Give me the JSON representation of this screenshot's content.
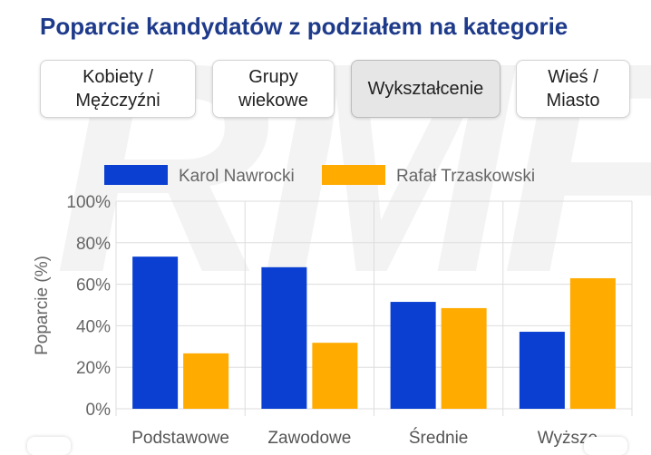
{
  "title": "Poparcie kandydatów z podziałem na kategorie",
  "watermark_text": "RMF",
  "tabs": [
    {
      "label": "Kobiety /\nMężczyźni",
      "active": false
    },
    {
      "label": "Grupy\nwiekowe",
      "active": false
    },
    {
      "label": "Wykształcenie",
      "active": true
    },
    {
      "label": "Wieś /\nMiasto",
      "active": false
    }
  ],
  "colors": {
    "nawrocki": "#0a3fd1",
    "trzaskowski": "#ffab00",
    "title": "#1e3a8a"
  },
  "chart_data": {
    "type": "bar",
    "title": "",
    "xlabel": "",
    "ylabel": "Poparcie (%)",
    "categories": [
      "Podstawowe",
      "Zawodowe",
      "Średnie",
      "Wyższe"
    ],
    "series": [
      {
        "name": "Karol Nawrocki",
        "values": [
          73.3,
          68.2,
          51.5,
          37.1
        ]
      },
      {
        "name": "Rafał Trzaskowski",
        "values": [
          26.7,
          31.8,
          48.5,
          62.9
        ]
      }
    ],
    "ylim": [
      0,
      100
    ],
    "yticks": [
      "0%",
      "20%",
      "40%",
      "60%",
      "80%",
      "100%"
    ],
    "grid": true,
    "legend": "top-center"
  }
}
